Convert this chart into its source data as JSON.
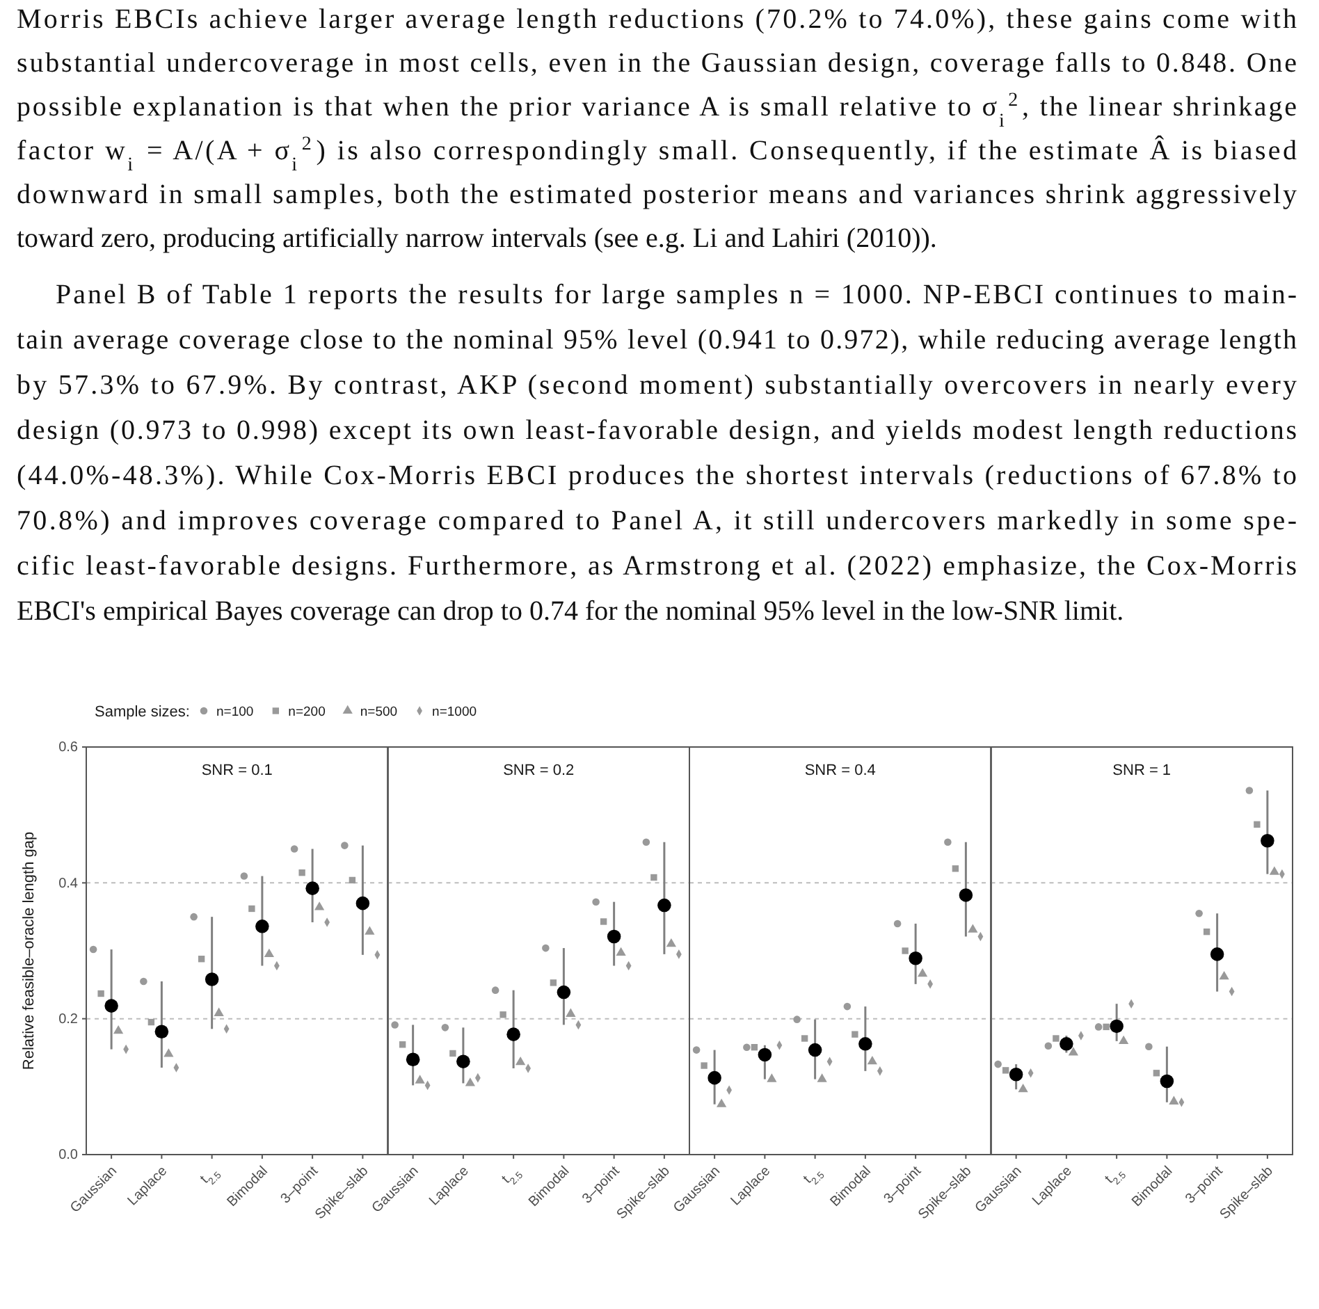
{
  "chart_data": [
    {
      "type": "scatter",
      "title": "SNR = 0.1",
      "ylabel": "Relative feasible–oracle length gap",
      "legend": "top",
      "legend_title": "Sample sizes:",
      "grid": "y",
      "annotations": [
        "Morris EBCIs achieve larger average length reductions (70.2% to 74.0%), these gains come with",
        "substantial undercoverage in most cells, even in the Gaussian design, coverage falls to 0.848. One",
        "possible explanation is that when the prior variance A is small relative to σ$_{i}$$^{2}$, the linear shrinkage",
        "factor w$_{i}$ = A/(A + σ$_{i}$$^{2}$) is also correspondingly small. Consequently, if the estimate Â is biased",
        "downward in small samples, both the estimated posterior means and variances shrink aggressively",
        "toward zero, producing artificially narrow intervals (see e.g. Li and Lahiri (2010)).",
        "Panel B of Table 1 reports the results for large samples n = 1000. NP-EBCI continues to main-",
        "tain average coverage close to the nominal 95% level (0.941 to 0.972), while reducing average length",
        "by 57.3% to 67.9%. By contrast, AKP (second moment) substantially overcovers in nearly every",
        "design (0.973 to 0.998) except its own least-favorable design, and yields modest length reductions",
        "(44.0%-48.3%). While Cox-Morris EBCI produces the shortest intervals (reductions of 67.8% to",
        "70.8%) and improves coverage compared to Panel A, it still undercovers markedly in some spe-",
        "cific least-favorable designs. Furthermore, as Armstrong et al. (2022) emphasize, the Cox-Morris",
        "EBCI's empirical Bayes coverage can drop to 0.74 for the nominal 95% level in the low-SNR limit."
      ],
      "categories": [
        "Gaussian",
        "Laplace",
        "t$_{2.5}$",
        "Bimodal",
        "3–point",
        "Spike–slab"
      ],
      "ylim": [
        0,
        0.6
      ],
      "yticks": [
        {
          "value": 0,
          "label": "0.0"
        },
        0.2,
        0.4,
        0.6
      ],
      "series": [
        {
          "name": "n=100",
          "color": "#999999",
          "marker": "circle",
          "values": [
            0.302,
            0.255,
            0.35,
            0.41,
            0.45,
            0.455
          ]
        },
        {
          "name": "n=200",
          "color": "#999999",
          "marker": "square",
          "values": [
            0.237,
            0.195,
            0.288,
            0.362,
            0.415,
            0.404
          ]
        },
        {
          "name": "n=500",
          "color": "#999999",
          "marker": "triangle",
          "values": [
            0.182,
            0.148,
            0.208,
            0.295,
            0.364,
            0.328
          ]
        },
        {
          "name": "n=1000",
          "color": "#999999",
          "marker": "diamond",
          "values": [
            0.155,
            0.128,
            0.185,
            0.278,
            0.342,
            0.294
          ]
        },
        {
          "color": "#000000",
          "marker": "circle",
          "values": [
            0.219,
            0.181,
            0.258,
            0.336,
            0.392,
            0.37
          ],
          "errors": [
            [
              0.155,
              0.302
            ],
            [
              0.128,
              0.255
            ],
            [
              0.185,
              0.35
            ],
            [
              0.278,
              0.41
            ],
            [
              0.342,
              0.45
            ],
            [
              0.294,
              0.455
            ]
          ]
        }
      ]
    },
    {
      "type": "scatter",
      "title": "SNR = 0.2",
      "tick_labels": "x",
      "grid": "y",
      "categories": [
        "Gaussian",
        "Laplace",
        "t$_{2.5}$",
        "Bimodal",
        "3–point",
        "Spike–slab"
      ],
      "ylim": [
        0,
        0.6
      ],
      "yticks": [
        0,
        0.2,
        0.4,
        0.6
      ],
      "series": [
        {
          "color": "#999999",
          "marker": "circle",
          "values": [
            0.191,
            0.187,
            0.242,
            0.304,
            0.372,
            0.46
          ]
        },
        {
          "color": "#999999",
          "marker": "square",
          "values": [
            0.162,
            0.149,
            0.206,
            0.253,
            0.343,
            0.408
          ]
        },
        {
          "color": "#999999",
          "marker": "triangle",
          "values": [
            0.109,
            0.105,
            0.136,
            0.207,
            0.297,
            0.31
          ]
        },
        {
          "color": "#999999",
          "marker": "diamond",
          "values": [
            0.102,
            0.113,
            0.127,
            0.191,
            0.278,
            0.295
          ]
        },
        {
          "color": "#000000",
          "marker": "circle",
          "values": [
            0.14,
            0.137,
            0.177,
            0.239,
            0.321,
            0.367
          ],
          "errors": [
            [
              0.102,
              0.191
            ],
            [
              0.105,
              0.187
            ],
            [
              0.127,
              0.242
            ],
            [
              0.191,
              0.304
            ],
            [
              0.278,
              0.372
            ],
            [
              0.295,
              0.46
            ]
          ]
        }
      ]
    },
    {
      "type": "scatter",
      "title": "SNR = 0.4",
      "tick_labels": "x",
      "grid": "y",
      "categories": [
        "Gaussian",
        "Laplace",
        "t$_{2.5}$",
        "Bimodal",
        "3–point",
        "Spike–slab"
      ],
      "ylim": [
        0,
        0.6
      ],
      "yticks": [
        0,
        0.2,
        0.4,
        0.6
      ],
      "series": [
        {
          "color": "#999999",
          "marker": "circle",
          "values": [
            0.154,
            0.158,
            0.199,
            0.218,
            0.34,
            0.46
          ]
        },
        {
          "color": "#999999",
          "marker": "square",
          "values": [
            0.131,
            0.158,
            0.171,
            0.177,
            0.3,
            0.421
          ]
        },
        {
          "color": "#999999",
          "marker": "triangle",
          "values": [
            0.074,
            0.111,
            0.111,
            0.137,
            0.266,
            0.331
          ]
        },
        {
          "color": "#999999",
          "marker": "diamond",
          "values": [
            0.095,
            0.161,
            0.137,
            0.123,
            0.251,
            0.321
          ]
        },
        {
          "color": "#000000",
          "marker": "circle",
          "values": [
            0.113,
            0.147,
            0.154,
            0.163,
            0.289,
            0.382
          ],
          "errors": [
            [
              0.074,
              0.154
            ],
            [
              0.111,
              0.161
            ],
            [
              0.111,
              0.199
            ],
            [
              0.123,
              0.218
            ],
            [
              0.251,
              0.34
            ],
            [
              0.321,
              0.46
            ]
          ]
        }
      ]
    },
    {
      "type": "scatter",
      "title": "SNR = 1",
      "tick_labels": "x",
      "grid": "y",
      "categories": [
        "Gaussian",
        "Laplace",
        "t$_{2.5}$",
        "Bimodal",
        "3–point",
        "Spike–slab"
      ],
      "ylim": [
        0,
        0.6
      ],
      "yticks": [
        0,
        0.2,
        0.4,
        0.6
      ],
      "series": [
        {
          "color": "#999999",
          "marker": "circle",
          "values": [
            0.133,
            0.16,
            0.188,
            0.159,
            0.355,
            0.536
          ]
        },
        {
          "color": "#999999",
          "marker": "square",
          "values": [
            0.124,
            0.171,
            0.188,
            0.12,
            0.328,
            0.486
          ]
        },
        {
          "color": "#999999",
          "marker": "triangle",
          "values": [
            0.096,
            0.15,
            0.167,
            0.078,
            0.262,
            0.416
          ]
        },
        {
          "color": "#999999",
          "marker": "diamond",
          "values": [
            0.12,
            0.175,
            0.222,
            0.077,
            0.24,
            0.413
          ]
        },
        {
          "color": "#000000",
          "marker": "circle",
          "values": [
            0.118,
            0.163,
            0.189,
            0.108,
            0.295,
            0.462
          ],
          "errors": [
            [
              0.096,
              0.133
            ],
            [
              0.15,
              0.175
            ],
            [
              0.167,
              0.222
            ],
            [
              0.077,
              0.159
            ],
            [
              0.24,
              0.355
            ],
            [
              0.413,
              0.536
            ]
          ]
        }
      ]
    }
  ]
}
